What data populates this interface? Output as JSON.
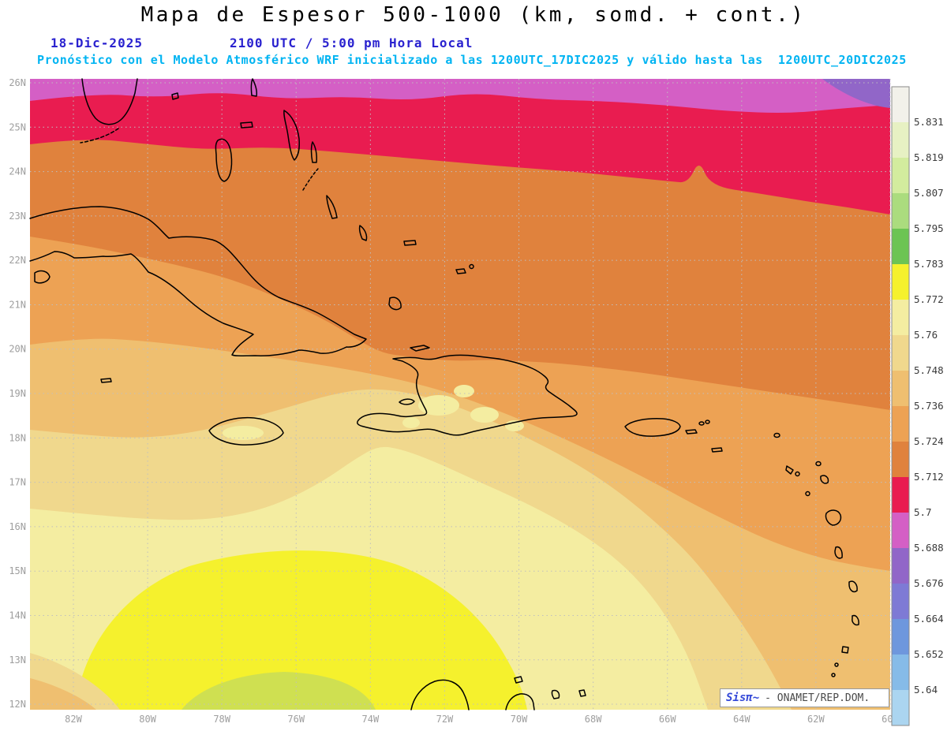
{
  "header": {
    "title": "Mapa de Espesor 500-1000 (km, somd. + cont.)",
    "date": "18-Dic-2025",
    "time": "2100 UTC / 5:00 pm Hora Local",
    "forecast_line": "Pronóstico con el Modelo Atmosférico WRF inicializado a las 1200UTC_17DIC2025 y válido hasta las  1200UTC_20DIC2025",
    "title_color": "#000000",
    "date_color": "#2a22cf",
    "forecast_color": "#00b4f2"
  },
  "map": {
    "lat_labels": [
      "26N",
      "25N",
      "24N",
      "23N",
      "22N",
      "21N",
      "20N",
      "19N",
      "18N",
      "17N",
      "16N",
      "15N",
      "14N",
      "13N",
      "12N"
    ],
    "lon_labels": [
      "82W",
      "80W",
      "78W",
      "76W",
      "74W",
      "72W",
      "70W",
      "68W",
      "66W",
      "64W",
      "62W",
      "60W"
    ],
    "grid_color": "#bfbfbf",
    "axis_label_color": "#9e9e9e",
    "coast_color": "#000000",
    "green_strip_color": "#cfe051"
  },
  "colorbar": {
    "tick_labels": [
      "5.831",
      "5.819",
      "5.807",
      "5.795",
      "5.783",
      "5.772",
      "5.76",
      "5.748",
      "5.736",
      "5.724",
      "5.712",
      "5.7",
      "5.688",
      "5.676",
      "5.664",
      "5.652",
      "5.64"
    ],
    "colors": [
      "#f2f1ea",
      "#e7f1c3",
      "#d3ec9e",
      "#abdc7e",
      "#6cc453",
      "#f5f12d",
      "#f4eda1",
      "#f0d88d",
      "#efbf70",
      "#eda254",
      "#e0823d",
      "#e91c50",
      "#d45fc5",
      "#9166c8",
      "#7e7ad5",
      "#6e97dd",
      "#86bbe8",
      "#abd5f0"
    ],
    "label_color": "#3a3a3a"
  },
  "attribution": {
    "logo": "Sisπ~",
    "text": "- ONAMET/REP.DOM.",
    "logo_color": "#3348d8"
  }
}
